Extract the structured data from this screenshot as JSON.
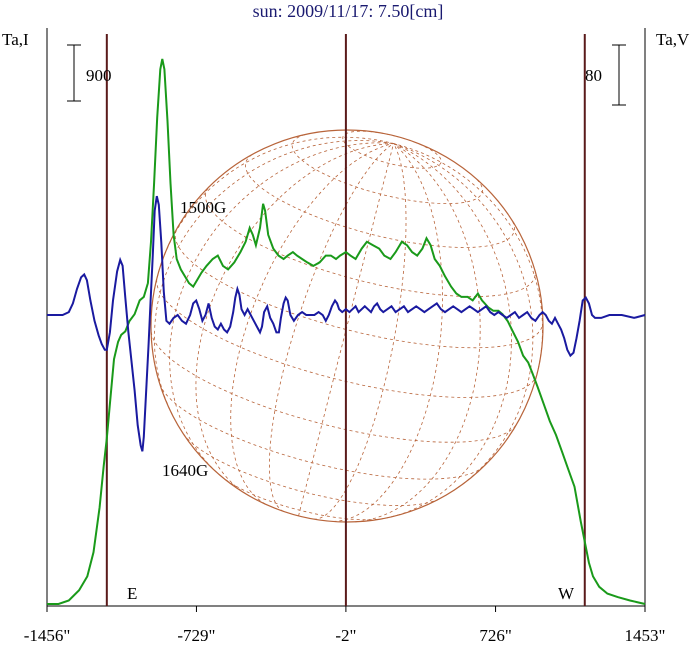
{
  "chart_data": {
    "type": "line",
    "title": "sun: 2009/11/17: 7.50[cm]",
    "ylabel_left": "Ta,I",
    "ylabel_right": "Ta,V",
    "scale_left": "900",
    "scale_right": "80",
    "limb_labels": {
      "east": "E",
      "west": "W"
    },
    "xlim": [
      -1456,
      1453
    ],
    "x_ticks": [
      {
        "value": -1456,
        "label": "-1456\""
      },
      {
        "value": -729,
        "label": "-729\""
      },
      {
        "value": -2,
        "label": "-2\""
      },
      {
        "value": 726,
        "label": "726\""
      },
      {
        "value": 1453,
        "label": "1453\""
      }
    ],
    "limb_x": [
      -1165,
      -2,
      1160
    ],
    "annotations": [
      {
        "text": "1500G",
        "x": -680
      },
      {
        "text": "1640G",
        "x": -820
      }
    ],
    "colors": {
      "intensity": "#1a9a1a",
      "polarization": "#1a1aa0",
      "disk": "#b8643a",
      "axis_lines": "#5a1a1a",
      "text": "#000000",
      "title": "#1a1a70"
    },
    "series": [
      {
        "name": "Ta,I",
        "points": [
          [
            -1456,
            0.0
          ],
          [
            -1400,
            0.0
          ],
          [
            -1350,
            0.01
          ],
          [
            -1300,
            0.04
          ],
          [
            -1260,
            0.08
          ],
          [
            -1230,
            0.15
          ],
          [
            -1200,
            0.28
          ],
          [
            -1180,
            0.4
          ],
          [
            -1165,
            0.48
          ],
          [
            -1150,
            0.58
          ],
          [
            -1130,
            0.71
          ],
          [
            -1110,
            0.76
          ],
          [
            -1095,
            0.78
          ],
          [
            -1075,
            0.79
          ],
          [
            -1055,
            0.82
          ],
          [
            -1030,
            0.84
          ],
          [
            -1005,
            0.88
          ],
          [
            -985,
            0.89
          ],
          [
            -965,
            0.93
          ],
          [
            -950,
            1.05
          ],
          [
            -935,
            1.22
          ],
          [
            -920,
            1.41
          ],
          [
            -905,
            1.55
          ],
          [
            -895,
            1.58
          ],
          [
            -885,
            1.55
          ],
          [
            -870,
            1.4
          ],
          [
            -855,
            1.22
          ],
          [
            -840,
            1.07
          ],
          [
            -825,
            1.0
          ],
          [
            -805,
            0.97
          ],
          [
            -785,
            0.95
          ],
          [
            -765,
            0.93
          ],
          [
            -745,
            0.92
          ],
          [
            -725,
            0.94
          ],
          [
            -705,
            0.96
          ],
          [
            -680,
            0.98
          ],
          [
            -650,
            1.0
          ],
          [
            -625,
            1.01
          ],
          [
            -600,
            0.98
          ],
          [
            -575,
            0.97
          ],
          [
            -545,
            0.99
          ],
          [
            -515,
            1.02
          ],
          [
            -490,
            1.05
          ],
          [
            -470,
            1.09
          ],
          [
            -455,
            1.07
          ],
          [
            -440,
            1.04
          ],
          [
            -420,
            1.09
          ],
          [
            -405,
            1.16
          ],
          [
            -395,
            1.14
          ],
          [
            -380,
            1.07
          ],
          [
            -355,
            1.03
          ],
          [
            -330,
            1.01
          ],
          [
            -305,
            1.0
          ],
          [
            -285,
            1.01
          ],
          [
            -260,
            1.02
          ],
          [
            -240,
            1.01
          ],
          [
            -215,
            1.0
          ],
          [
            -190,
            0.99
          ],
          [
            -160,
            0.98
          ],
          [
            -130,
            0.99
          ],
          [
            -100,
            1.01
          ],
          [
            -75,
            1.01
          ],
          [
            -50,
            1.0
          ],
          [
            -30,
            1.01
          ],
          [
            -2,
            1.02
          ],
          [
            20,
            1.01
          ],
          [
            45,
            1.0
          ],
          [
            75,
            1.03
          ],
          [
            100,
            1.05
          ],
          [
            130,
            1.04
          ],
          [
            160,
            1.03
          ],
          [
            185,
            1.01
          ],
          [
            215,
            1.0
          ],
          [
            240,
            1.02
          ],
          [
            270,
            1.05
          ],
          [
            295,
            1.04
          ],
          [
            320,
            1.02
          ],
          [
            345,
            1.01
          ],
          [
            370,
            1.03
          ],
          [
            390,
            1.06
          ],
          [
            410,
            1.04
          ],
          [
            430,
            1.0
          ],
          [
            455,
            0.98
          ],
          [
            480,
            0.95
          ],
          [
            510,
            0.92
          ],
          [
            535,
            0.9
          ],
          [
            560,
            0.89
          ],
          [
            590,
            0.89
          ],
          [
            615,
            0.88
          ],
          [
            640,
            0.9
          ],
          [
            660,
            0.88
          ],
          [
            690,
            0.86
          ],
          [
            715,
            0.85
          ],
          [
            740,
            0.85
          ],
          [
            760,
            0.84
          ],
          [
            785,
            0.82
          ],
          [
            810,
            0.79
          ],
          [
            835,
            0.76
          ],
          [
            860,
            0.72
          ],
          [
            885,
            0.7
          ],
          [
            905,
            0.67
          ],
          [
            930,
            0.63
          ],
          [
            960,
            0.58
          ],
          [
            990,
            0.53
          ],
          [
            1020,
            0.49
          ],
          [
            1050,
            0.44
          ],
          [
            1080,
            0.39
          ],
          [
            1110,
            0.34
          ],
          [
            1140,
            0.24
          ],
          [
            1160,
            0.18
          ],
          [
            1180,
            0.12
          ],
          [
            1200,
            0.08
          ],
          [
            1230,
            0.05
          ],
          [
            1270,
            0.03
          ],
          [
            1320,
            0.02
          ],
          [
            1380,
            0.01
          ],
          [
            1453,
            0.0
          ]
        ]
      },
      {
        "name": "Ta,V",
        "points": [
          [
            -1456,
            0.0
          ],
          [
            -1420,
            0.0
          ],
          [
            -1380,
            0.0
          ],
          [
            -1350,
            0.01
          ],
          [
            -1330,
            0.04
          ],
          [
            -1310,
            0.09
          ],
          [
            -1290,
            0.13
          ],
          [
            -1275,
            0.14
          ],
          [
            -1262,
            0.12
          ],
          [
            -1245,
            0.05
          ],
          [
            -1225,
            -0.02
          ],
          [
            -1205,
            -0.07
          ],
          [
            -1190,
            -0.1
          ],
          [
            -1175,
            -0.12
          ],
          [
            -1165,
            -0.12
          ],
          [
            -1150,
            -0.06
          ],
          [
            -1135,
            0.05
          ],
          [
            -1115,
            0.15
          ],
          [
            -1100,
            0.19
          ],
          [
            -1088,
            0.17
          ],
          [
            -1075,
            0.06
          ],
          [
            -1060,
            -0.06
          ],
          [
            -1045,
            -0.16
          ],
          [
            -1030,
            -0.26
          ],
          [
            -1015,
            -0.38
          ],
          [
            -1000,
            -0.45
          ],
          [
            -992,
            -0.47
          ],
          [
            -985,
            -0.42
          ],
          [
            -975,
            -0.28
          ],
          [
            -962,
            -0.1
          ],
          [
            -952,
            0.05
          ],
          [
            -942,
            0.2
          ],
          [
            -932,
            0.36
          ],
          [
            -922,
            0.41
          ],
          [
            -912,
            0.38
          ],
          [
            -900,
            0.25
          ],
          [
            -888,
            0.08
          ],
          [
            -875,
            -0.02
          ],
          [
            -860,
            -0.03
          ],
          [
            -840,
            -0.01
          ],
          [
            -820,
            0.0
          ],
          [
            -800,
            -0.02
          ],
          [
            -780,
            -0.03
          ],
          [
            -760,
            0.0
          ],
          [
            -745,
            0.04
          ],
          [
            -730,
            0.05
          ],
          [
            -715,
            0.02
          ],
          [
            -700,
            -0.02
          ],
          [
            -685,
            0.0
          ],
          [
            -670,
            0.04
          ],
          [
            -655,
            -0.01
          ],
          [
            -640,
            -0.04
          ],
          [
            -625,
            -0.05
          ],
          [
            -610,
            -0.03
          ],
          [
            -595,
            -0.05
          ],
          [
            -580,
            -0.06
          ],
          [
            -565,
            -0.04
          ],
          [
            -550,
            0.01
          ],
          [
            -540,
            0.06
          ],
          [
            -530,
            0.09
          ],
          [
            -520,
            0.07
          ],
          [
            -510,
            0.02
          ],
          [
            -495,
            0.0
          ],
          [
            -480,
            0.02
          ],
          [
            -465,
            0.0
          ],
          [
            -450,
            -0.02
          ],
          [
            -435,
            -0.04
          ],
          [
            -420,
            -0.06
          ],
          [
            -410,
            -0.04
          ],
          [
            -400,
            0.01
          ],
          [
            -385,
            0.03
          ],
          [
            -370,
            -0.01
          ],
          [
            -355,
            -0.03
          ],
          [
            -340,
            -0.06
          ],
          [
            -328,
            -0.06
          ],
          [
            -318,
            -0.01
          ],
          [
            -305,
            0.04
          ],
          [
            -295,
            0.06
          ],
          [
            -285,
            0.05
          ],
          [
            -272,
            0.0
          ],
          [
            -255,
            -0.02
          ],
          [
            -235,
            0.0
          ],
          [
            -215,
            0.01
          ],
          [
            -195,
            0.0
          ],
          [
            -175,
            0.0
          ],
          [
            -155,
            0.0
          ],
          [
            -135,
            0.01
          ],
          [
            -115,
            0.0
          ],
          [
            -100,
            -0.02
          ],
          [
            -85,
            0.0
          ],
          [
            -70,
            0.03
          ],
          [
            -55,
            0.05
          ],
          [
            -45,
            0.04
          ],
          [
            -35,
            0.02
          ],
          [
            -20,
            0.01
          ],
          [
            -2,
            0.02
          ],
          [
            15,
            0.01
          ],
          [
            30,
            0.02
          ],
          [
            45,
            0.03
          ],
          [
            60,
            0.01
          ],
          [
            75,
            0.02
          ],
          [
            90,
            0.03
          ],
          [
            105,
            0.02
          ],
          [
            120,
            0.01
          ],
          [
            135,
            0.03
          ],
          [
            150,
            0.04
          ],
          [
            165,
            0.02
          ],
          [
            180,
            0.01
          ],
          [
            200,
            0.02
          ],
          [
            220,
            0.03
          ],
          [
            240,
            0.01
          ],
          [
            260,
            0.02
          ],
          [
            280,
            0.03
          ],
          [
            300,
            0.01
          ],
          [
            320,
            0.02
          ],
          [
            340,
            0.03
          ],
          [
            360,
            0.02
          ],
          [
            380,
            0.01
          ],
          [
            400,
            0.02
          ],
          [
            420,
            0.03
          ],
          [
            440,
            0.04
          ],
          [
            460,
            0.02
          ],
          [
            480,
            0.01
          ],
          [
            500,
            0.02
          ],
          [
            520,
            0.03
          ],
          [
            540,
            0.02
          ],
          [
            560,
            0.01
          ],
          [
            580,
            0.02
          ],
          [
            600,
            0.03
          ],
          [
            620,
            0.02
          ],
          [
            640,
            0.01
          ],
          [
            660,
            0.02
          ],
          [
            680,
            0.03
          ],
          [
            700,
            0.01
          ],
          [
            720,
            0.0
          ],
          [
            740,
            0.01
          ],
          [
            760,
            0.0
          ],
          [
            780,
            -0.01
          ],
          [
            800,
            0.0
          ],
          [
            820,
            0.01
          ],
          [
            840,
            -0.01
          ],
          [
            860,
            0.0
          ],
          [
            880,
            0.01
          ],
          [
            900,
            -0.01
          ],
          [
            920,
            -0.02
          ],
          [
            940,
            0.0
          ],
          [
            955,
            0.01
          ],
          [
            970,
            0.0
          ],
          [
            985,
            -0.02
          ],
          [
            1000,
            -0.03
          ],
          [
            1015,
            -0.01
          ],
          [
            1030,
            -0.03
          ],
          [
            1045,
            -0.05
          ],
          [
            1060,
            -0.08
          ],
          [
            1075,
            -0.12
          ],
          [
            1090,
            -0.14
          ],
          [
            1105,
            -0.13
          ],
          [
            1120,
            -0.08
          ],
          [
            1135,
            -0.02
          ],
          [
            1150,
            0.05
          ],
          [
            1165,
            0.06
          ],
          [
            1180,
            0.04
          ],
          [
            1195,
            0.0
          ],
          [
            1210,
            -0.01
          ],
          [
            1240,
            -0.01
          ],
          [
            1280,
            0.0
          ],
          [
            1340,
            0.0
          ],
          [
            1400,
            -0.01
          ],
          [
            1453,
            0.0
          ]
        ]
      }
    ]
  }
}
